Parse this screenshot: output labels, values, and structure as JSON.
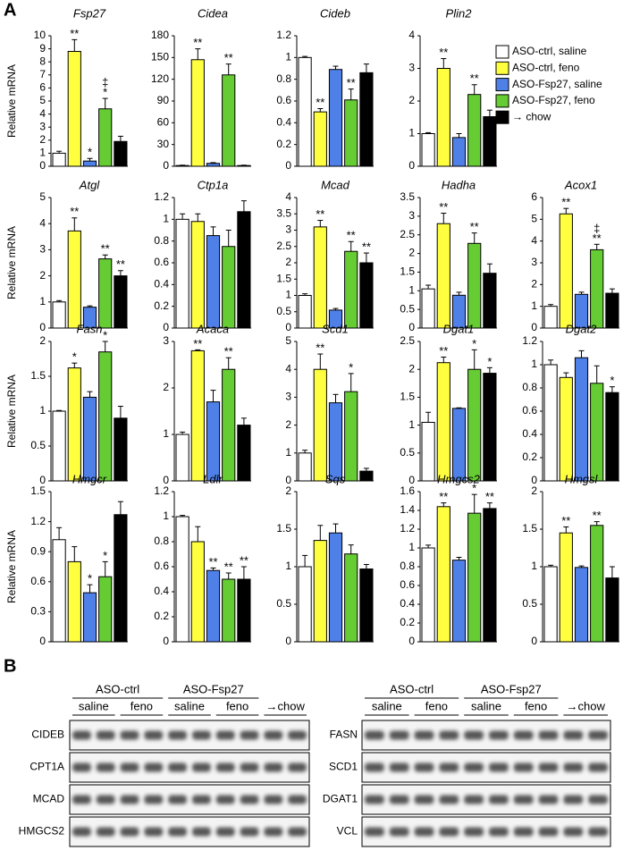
{
  "panel_a_label": "A",
  "panel_b_label": "B",
  "legend": [
    {
      "name": "ASO-ctrl, saline",
      "color": "#ffffff"
    },
    {
      "name": "ASO-ctrl, feno",
      "color": "#ffff40"
    },
    {
      "name": "ASO-Fsp27, saline",
      "color": "#4f80e8"
    },
    {
      "name": "ASO-Fsp27, feno",
      "color": "#66cc33"
    },
    {
      "name": "→ chow",
      "color": "#000000"
    }
  ],
  "chart_data": [
    {
      "type": "bar",
      "title": "Fsp27",
      "ylabel": "Relative mRNA",
      "ylim": [
        0,
        10
      ],
      "yticks": [
        0,
        1,
        2,
        3,
        4,
        5,
        6,
        7,
        8,
        9,
        10
      ],
      "values": [
        1,
        8.8,
        0.4,
        4.4,
        1.9
      ],
      "errors": [
        0.15,
        0.9,
        0.2,
        0.8,
        0.4
      ],
      "annotations": [
        null,
        [
          "**"
        ],
        [
          "*"
        ],
        [
          "‡",
          "*"
        ],
        null
      ]
    },
    {
      "type": "bar",
      "title": "Cidea",
      "ylim": [
        0,
        180
      ],
      "yticks": [
        0,
        30,
        60,
        90,
        120,
        150,
        180
      ],
      "values": [
        1,
        147,
        4,
        126,
        1
      ],
      "errors": [
        0.5,
        15,
        1,
        15,
        0.5
      ],
      "annotations": [
        null,
        [
          "**"
        ],
        null,
        [
          "**"
        ],
        null
      ]
    },
    {
      "type": "bar",
      "title": "Cideb",
      "ylim": [
        0,
        1.2
      ],
      "yticks": [
        0,
        0.2,
        0.4,
        0.6,
        0.8,
        1,
        1.2
      ],
      "values": [
        1,
        0.5,
        0.89,
        0.61,
        0.86
      ],
      "errors": [
        0.01,
        0.03,
        0.03,
        0.1,
        0.08
      ],
      "annotations": [
        null,
        [
          "**"
        ],
        null,
        [
          "**"
        ],
        null
      ]
    },
    {
      "type": "bar",
      "title": "Plin2",
      "ylim": [
        0,
        4
      ],
      "yticks": [
        0,
        1,
        2,
        3,
        4
      ],
      "values": [
        1,
        3,
        0.88,
        2.2,
        1.52
      ],
      "errors": [
        0.03,
        0.3,
        0.12,
        0.3,
        0.2
      ],
      "annotations": [
        null,
        [
          "**"
        ],
        null,
        [
          "**"
        ],
        null
      ]
    },
    {
      "type": "bar",
      "title": "Atgl",
      "ylabel": "Relative mRNA",
      "ylim": [
        0,
        5
      ],
      "yticks": [
        0,
        1,
        2,
        3,
        4,
        5
      ],
      "values": [
        1,
        3.72,
        0.8,
        2.65,
        2
      ],
      "errors": [
        0.05,
        0.5,
        0.05,
        0.15,
        0.2
      ],
      "annotations": [
        null,
        [
          "**"
        ],
        null,
        [
          "**"
        ],
        [
          "**"
        ]
      ]
    },
    {
      "type": "bar",
      "title": "Ctp1a",
      "ylim": [
        0,
        1.2
      ],
      "yticks": [
        0,
        0.2,
        0.4,
        0.6,
        0.8,
        1,
        1.2
      ],
      "values": [
        1,
        0.98,
        0.85,
        0.75,
        1.07
      ],
      "errors": [
        0.05,
        0.07,
        0.08,
        0.15,
        0.1
      ],
      "annotations": [
        null,
        null,
        null,
        null,
        null
      ]
    },
    {
      "type": "bar",
      "title": "Mcad",
      "ylim": [
        0,
        4
      ],
      "yticks": [
        0,
        0.5,
        1,
        1.5,
        2,
        2.5,
        3,
        3.5,
        4
      ],
      "values": [
        1,
        3.1,
        0.55,
        2.35,
        2
      ],
      "errors": [
        0.05,
        0.2,
        0.05,
        0.3,
        0.3
      ],
      "annotations": [
        null,
        [
          "**"
        ],
        null,
        [
          "**"
        ],
        [
          "**"
        ]
      ]
    },
    {
      "type": "bar",
      "title": "Hadha",
      "ylim": [
        0,
        3.5
      ],
      "yticks": [
        0,
        0.5,
        1,
        1.5,
        2,
        2.5,
        3,
        3.5
      ],
      "values": [
        1.05,
        2.8,
        0.88,
        2.27,
        1.47
      ],
      "errors": [
        0.1,
        0.28,
        0.08,
        0.28,
        0.25
      ],
      "annotations": [
        null,
        [
          "**"
        ],
        null,
        [
          "**"
        ],
        null
      ]
    },
    {
      "type": "bar",
      "title": "Acox1",
      "ylim": [
        0,
        6
      ],
      "yticks": [
        0,
        1,
        2,
        3,
        4,
        5,
        6
      ],
      "values": [
        1,
        5.25,
        1.55,
        3.6,
        1.6
      ],
      "errors": [
        0.08,
        0.25,
        0.1,
        0.25,
        0.2
      ],
      "annotations": [
        null,
        [
          "**"
        ],
        null,
        [
          "‡",
          "**"
        ],
        null
      ]
    },
    {
      "type": "bar",
      "title": "Fasn",
      "ylabel": "Relative mRNA",
      "ylim": [
        0,
        2
      ],
      "yticks": [
        0,
        0.5,
        1,
        1.5,
        2
      ],
      "values": [
        1,
        1.62,
        1.2,
        1.85,
        0.9
      ],
      "errors": [
        0.01,
        0.07,
        0.08,
        0.15,
        0.17
      ],
      "annotations": [
        null,
        [
          "*"
        ],
        null,
        [
          "*"
        ],
        null
      ]
    },
    {
      "type": "bar",
      "title": "Acaca",
      "ylim": [
        0,
        3
      ],
      "yticks": [
        0,
        1,
        2,
        3
      ],
      "values": [
        1,
        2.8,
        1.7,
        2.4,
        1.2
      ],
      "errors": [
        0.05,
        0.02,
        0.25,
        0.25,
        0.15
      ],
      "annotations": [
        null,
        [
          "**"
        ],
        null,
        [
          "**"
        ],
        null
      ]
    },
    {
      "type": "bar",
      "title": "Scd1",
      "ylim": [
        0,
        5
      ],
      "yticks": [
        0,
        1,
        2,
        3,
        4,
        5
      ],
      "values": [
        1,
        4,
        2.8,
        3.2,
        0.35
      ],
      "errors": [
        0.1,
        0.55,
        0.3,
        0.65,
        0.1
      ],
      "annotations": [
        null,
        [
          "**"
        ],
        null,
        [
          "*"
        ],
        null
      ]
    },
    {
      "type": "bar",
      "title": "Dgat1",
      "ylim": [
        0,
        2.5
      ],
      "yticks": [
        0,
        0.5,
        1,
        1.5,
        2,
        2.5
      ],
      "values": [
        1.05,
        2.12,
        1.3,
        2,
        1.93
      ],
      "errors": [
        0.18,
        0.1,
        0.01,
        0.35,
        0.1
      ],
      "annotations": [
        null,
        [
          "**"
        ],
        null,
        [
          "*"
        ],
        [
          "*"
        ]
      ]
    },
    {
      "type": "bar",
      "title": "Dgat2",
      "ylim": [
        0,
        1.2
      ],
      "yticks": [
        0,
        0.2,
        0.4,
        0.6,
        0.8,
        1,
        1.2
      ],
      "values": [
        1,
        0.89,
        1.06,
        0.84,
        0.76
      ],
      "errors": [
        0.04,
        0.04,
        0.06,
        0.15,
        0.05
      ],
      "annotations": [
        null,
        null,
        null,
        null,
        [
          "*"
        ]
      ]
    },
    {
      "type": "bar",
      "title": "Hmgcr",
      "ylabel": "Relative mRNA",
      "ylim": [
        0,
        1.5
      ],
      "yticks": [
        0,
        0.3,
        0.6,
        0.9,
        1.2,
        1.5
      ],
      "values": [
        1.02,
        0.8,
        0.49,
        0.65,
        1.27
      ],
      "errors": [
        0.12,
        0.15,
        0.08,
        0.15,
        0.13
      ],
      "annotations": [
        null,
        null,
        [
          "*"
        ],
        [
          "*"
        ],
        null
      ]
    },
    {
      "type": "bar",
      "title": "Ldlr",
      "ylim": [
        0,
        1.2
      ],
      "yticks": [
        0,
        0.2,
        0.4,
        0.6,
        0.8,
        1,
        1.2
      ],
      "values": [
        1,
        0.8,
        0.57,
        0.5,
        0.5
      ],
      "errors": [
        0.01,
        0.12,
        0.02,
        0.05,
        0.1
      ],
      "annotations": [
        null,
        null,
        [
          "**"
        ],
        [
          "**"
        ],
        [
          "**"
        ]
      ]
    },
    {
      "type": "bar",
      "title": "Sqs",
      "ylim": [
        0,
        2
      ],
      "yticks": [
        0,
        0.5,
        1,
        1.5,
        2
      ],
      "values": [
        1,
        1.35,
        1.45,
        1.17,
        0.97
      ],
      "errors": [
        0.15,
        0.2,
        0.12,
        0.12,
        0.06
      ],
      "annotations": [
        null,
        null,
        null,
        null,
        null
      ]
    },
    {
      "type": "bar",
      "title": "Hmgcs2",
      "ylim": [
        0,
        1.6
      ],
      "yticks": [
        0,
        0.2,
        0.4,
        0.6,
        0.8,
        1,
        1.2,
        1.4,
        1.6
      ],
      "values": [
        1,
        1.44,
        0.87,
        1.37,
        1.42
      ],
      "errors": [
        0.03,
        0.04,
        0.03,
        0.2,
        0.06
      ],
      "annotations": [
        null,
        [
          "**"
        ],
        null,
        [
          "*"
        ],
        [
          "**"
        ]
      ]
    },
    {
      "type": "bar",
      "title": "Hmgsl",
      "ylim": [
        0,
        2
      ],
      "yticks": [
        0,
        0.5,
        1,
        1.5,
        2
      ],
      "values": [
        1,
        1.45,
        0.99,
        1.55,
        0.85
      ],
      "errors": [
        0.02,
        0.08,
        0.02,
        0.05,
        0.15
      ],
      "annotations": [
        null,
        [
          "**"
        ],
        null,
        [
          "**"
        ],
        null
      ]
    }
  ],
  "blots": [
    {
      "groups": [
        "ASO-ctrl",
        "ASO-Fsp27"
      ],
      "subgroups": [
        "saline",
        "feno",
        "saline",
        "feno",
        "→chow"
      ],
      "proteins": [
        "CIDEB",
        "CPT1A",
        "MCAD",
        "HMGCS2"
      ]
    },
    {
      "groups": [
        "ASO-ctrl",
        "ASO-Fsp27"
      ],
      "subgroups": [
        "saline",
        "feno",
        "saline",
        "feno",
        "→chow"
      ],
      "proteins": [
        "FASN",
        "SCD1",
        "DGAT1",
        "VCL"
      ]
    }
  ]
}
